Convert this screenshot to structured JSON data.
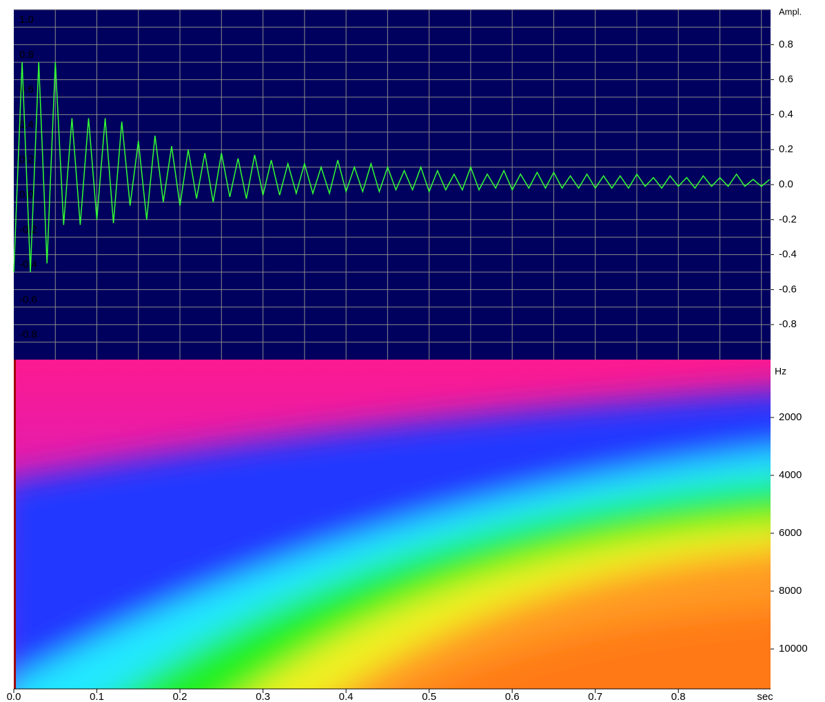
{
  "chart_data": [
    {
      "type": "line",
      "ylabel": "Ampl.",
      "color": "#33ff33",
      "background": "#00005e",
      "grid_color": "#8c8c8c",
      "xlim": [
        0,
        0.911
      ],
      "ylim": [
        -1,
        1
      ],
      "xgrid": [
        0.05,
        0.1,
        0.15,
        0.2,
        0.25,
        0.3,
        0.35,
        0.4,
        0.45,
        0.5,
        0.55,
        0.6,
        0.65,
        0.7,
        0.75,
        0.8,
        0.85,
        0.9
      ],
      "ygrid": [
        1,
        0.9,
        0.8,
        0.7,
        0.6,
        0.5,
        0.4,
        0.3,
        0.2,
        0.1,
        0,
        -0.1,
        -0.2,
        -0.3,
        -0.4,
        -0.5,
        -0.6,
        -0.7,
        -0.8,
        -0.9
      ],
      "yticks": [
        0.8,
        0.6,
        0.4,
        0.2,
        {
          "value": 0,
          "label": "0.0"
        },
        -0.2,
        -0.4,
        -0.6,
        -0.8
      ],
      "yticks_inner": [
        {
          "value": 1,
          "label": "1.0"
        },
        0.8,
        0.6,
        0.4,
        0.2,
        {
          "value": 0,
          "label": "0.0"
        },
        -0.2,
        -0.4,
        -0.6,
        -0.8
      ],
      "x": [
        0,
        0.01,
        0.02,
        0.03,
        0.04,
        0.05,
        0.06,
        0.07,
        0.08,
        0.09,
        0.1,
        0.11,
        0.12,
        0.13,
        0.14,
        0.15,
        0.16,
        0.17,
        0.18,
        0.19,
        0.2,
        0.21,
        0.22,
        0.23,
        0.24,
        0.25,
        0.26,
        0.27,
        0.28,
        0.29,
        0.3,
        0.31,
        0.32,
        0.33,
        0.34,
        0.35,
        0.36,
        0.37,
        0.38,
        0.39,
        0.4,
        0.41,
        0.42,
        0.43,
        0.44,
        0.45,
        0.46,
        0.47,
        0.48,
        0.49,
        0.5,
        0.51,
        0.52,
        0.53,
        0.54,
        0.55,
        0.56,
        0.57,
        0.58,
        0.59,
        0.6,
        0.61,
        0.62,
        0.63,
        0.64,
        0.65,
        0.66,
        0.67,
        0.68,
        0.69,
        0.7,
        0.71,
        0.72,
        0.73,
        0.74,
        0.75,
        0.76,
        0.77,
        0.78,
        0.79,
        0.8,
        0.81,
        0.82,
        0.83,
        0.84,
        0.85,
        0.86,
        0.87,
        0.88,
        0.89,
        0.9,
        0.91
      ],
      "values": [
        -0.5,
        0.7,
        -0.5,
        0.7,
        -0.45,
        0.7,
        -0.23,
        0.38,
        -0.23,
        0.38,
        -0.2,
        0.38,
        -0.22,
        0.36,
        -0.12,
        0.25,
        -0.2,
        0.28,
        -0.1,
        0.22,
        -0.12,
        0.2,
        -0.08,
        0.18,
        -0.1,
        0.18,
        -0.07,
        0.15,
        -0.08,
        0.17,
        -0.06,
        0.14,
        -0.06,
        0.12,
        -0.05,
        0.12,
        -0.05,
        0.1,
        -0.05,
        0.14,
        -0.04,
        0.1,
        -0.04,
        0.12,
        -0.04,
        0.1,
        -0.03,
        0.08,
        -0.03,
        0.1,
        -0.04,
        0.08,
        -0.03,
        0.06,
        -0.03,
        0.1,
        -0.03,
        0.06,
        -0.02,
        0.08,
        -0.03,
        0.06,
        -0.02,
        0.07,
        -0.02,
        0.07,
        -0.02,
        0.05,
        -0.02,
        0.06,
        -0.02,
        0.05,
        -0.02,
        0.05,
        -0.02,
        0.06,
        -0.01,
        0.04,
        -0.02,
        0.05,
        -0.01,
        0.04,
        -0.02,
        0.05,
        -0.01,
        0.04,
        -0.01,
        0.06,
        -0.01,
        0.03,
        -0.01,
        0.03
      ]
    },
    {
      "type": "spectrogram",
      "ylabel": "Hz",
      "xlabel": "sec",
      "xlim": [
        0,
        0.911
      ],
      "ylim": [
        0,
        11380
      ],
      "xticks": [
        {
          "value": 0,
          "label": "0.0"
        },
        0.1,
        0.2,
        0.3,
        0.4,
        0.5,
        0.6,
        0.7,
        0.8
      ],
      "yticks": [
        2000,
        4000,
        6000,
        8000,
        10000
      ]
    }
  ]
}
